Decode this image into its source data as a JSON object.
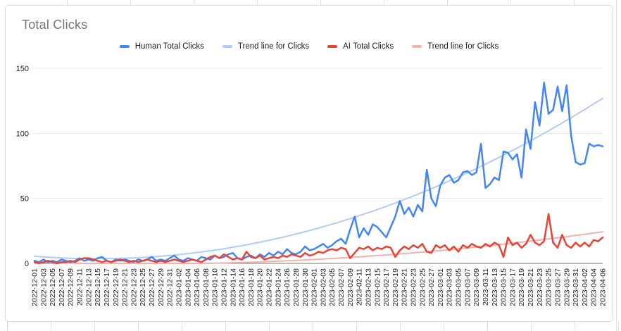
{
  "title": "Total Clicks",
  "colors": {
    "human": "#4285f4",
    "human_trend": "#aecbfa",
    "ai": "#ea4335",
    "ai_trend": "#f4b1ab",
    "grid": "#e6e6e6",
    "axis_line": "#757575",
    "axis_text": "#202124",
    "title_text": "#757575",
    "card_border": "#d8d8d8"
  },
  "legend": [
    {
      "label": "Human Total Clicks",
      "color": "#4285f4"
    },
    {
      "label": "Trend line for Clicks",
      "color": "#aecbfa"
    },
    {
      "label": "AI Total Clicks",
      "color": "#ea4335"
    },
    {
      "label": "Trend line for Clicks",
      "color": "#f4b1ab"
    }
  ],
  "chart_data": {
    "type": "line",
    "title": "Total Clicks",
    "xlabel": "",
    "ylabel": "",
    "ylim": [
      0,
      150
    ],
    "yticks": [
      0,
      50,
      100,
      150
    ],
    "grid": "horizontal",
    "legend_position": "top",
    "x_tick_every": 2,
    "x": [
      "2022-12-01",
      "2022-12-02",
      "2022-12-03",
      "2022-12-04",
      "2022-12-05",
      "2022-12-06",
      "2022-12-07",
      "2022-12-08",
      "2022-12-09",
      "2022-12-10",
      "2022-12-11",
      "2022-12-12",
      "2022-12-13",
      "2022-12-14",
      "2022-12-15",
      "2022-12-16",
      "2022-12-17",
      "2022-12-18",
      "2022-12-19",
      "2022-12-20",
      "2022-12-21",
      "2022-12-22",
      "2022-12-23",
      "2022-12-24",
      "2022-12-25",
      "2022-12-26",
      "2022-12-27",
      "2022-12-28",
      "2022-12-29",
      "2022-12-30",
      "2022-12-31",
      "2023-01-01",
      "2023-01-02",
      "2023-01-03",
      "2023-01-04",
      "2023-01-05",
      "2023-01-06",
      "2023-01-07",
      "2023-01-08",
      "2023-01-09",
      "2023-01-10",
      "2023-01-11",
      "2023-01-12",
      "2023-01-13",
      "2023-01-14",
      "2023-01-15",
      "2023-01-16",
      "2023-01-17",
      "2023-01-18",
      "2023-01-19",
      "2023-01-20",
      "2023-01-21",
      "2023-01-22",
      "2023-01-23",
      "2023-01-24",
      "2023-01-25",
      "2023-01-26",
      "2023-01-27",
      "2023-01-28",
      "2023-01-29",
      "2023-01-30",
      "2023-01-31",
      "2023-02-01",
      "2023-02-02",
      "2023-02-03",
      "2023-02-04",
      "2023-02-05",
      "2023-02-06",
      "2023-02-07",
      "2023-02-08",
      "2023-02-09",
      "2023-02-10",
      "2023-02-11",
      "2023-02-12",
      "2023-02-13",
      "2023-02-14",
      "2023-02-15",
      "2023-02-16",
      "2023-02-17",
      "2023-02-18",
      "2023-02-19",
      "2023-02-20",
      "2023-02-21",
      "2023-02-22",
      "2023-02-23",
      "2023-02-24",
      "2023-02-25",
      "2023-02-26",
      "2023-02-27",
      "2023-02-28",
      "2023-03-01",
      "2023-03-02",
      "2023-03-03",
      "2023-03-04",
      "2023-03-05",
      "2023-03-06",
      "2023-03-07",
      "2023-03-08",
      "2023-03-09",
      "2023-03-10",
      "2023-03-11",
      "2023-03-12",
      "2023-03-13",
      "2023-03-14",
      "2023-03-15",
      "2023-03-16",
      "2023-03-17",
      "2023-03-18",
      "2023-03-19",
      "2023-03-20",
      "2023-03-21",
      "2023-03-22",
      "2023-03-23",
      "2023-03-24",
      "2023-03-25",
      "2023-03-26",
      "2023-03-27",
      "2023-03-28",
      "2023-03-29",
      "2023-03-30",
      "2023-03-31",
      "2023-04-01",
      "2023-04-02",
      "2023-04-03",
      "2023-04-04",
      "2023-04-05",
      "2023-04-06"
    ],
    "series": [
      {
        "name": "Human Total Clicks",
        "color": "#4285f4",
        "values": [
          2,
          1,
          3,
          1,
          2,
          1,
          3,
          2,
          1,
          2,
          4,
          2,
          3,
          2,
          4,
          5,
          2,
          1,
          3,
          2,
          3,
          2,
          1,
          3,
          2,
          3,
          5,
          2,
          3,
          2,
          4,
          6,
          3,
          2,
          4,
          3,
          2,
          5,
          4,
          3,
          6,
          4,
          5,
          7,
          8,
          4,
          3,
          5,
          6,
          4,
          7,
          5,
          8,
          6,
          9,
          7,
          11,
          8,
          7,
          9,
          13,
          10,
          11,
          13,
          15,
          12,
          14,
          17,
          19,
          15,
          26,
          36,
          20,
          27,
          22,
          30,
          28,
          24,
          20,
          28,
          36,
          48,
          38,
          43,
          36,
          45,
          40,
          72,
          50,
          44,
          60,
          66,
          68,
          62,
          64,
          70,
          71,
          68,
          70,
          92,
          58,
          61,
          66,
          64,
          86,
          85,
          80,
          84,
          66,
          103,
          88,
          124,
          106,
          139,
          115,
          118,
          136,
          117,
          137,
          98,
          78,
          76,
          77,
          92,
          90,
          91,
          90
        ]
      },
      {
        "name": "AI Total Clicks",
        "color": "#ea4335",
        "values": [
          1,
          0,
          1,
          2,
          1,
          0,
          1,
          1,
          2,
          1,
          3,
          4,
          4,
          3,
          2,
          1,
          2,
          1,
          2,
          3,
          2,
          1,
          2,
          1,
          2,
          3,
          2,
          1,
          2,
          1,
          2,
          3,
          2,
          1,
          2,
          3,
          2,
          1,
          3,
          5,
          6,
          4,
          7,
          5,
          3,
          4,
          3,
          9,
          5,
          4,
          6,
          3,
          4,
          5,
          4,
          6,
          5,
          7,
          6,
          5,
          8,
          6,
          7,
          9,
          8,
          10,
          11,
          10,
          12,
          11,
          4,
          8,
          12,
          11,
          13,
          10,
          12,
          11,
          13,
          12,
          5,
          10,
          13,
          11,
          14,
          12,
          15,
          9,
          8,
          14,
          12,
          14,
          10,
          13,
          9,
          14,
          12,
          15,
          13,
          12,
          15,
          13,
          16,
          14,
          5,
          20,
          14,
          16,
          12,
          15,
          22,
          16,
          14,
          17,
          38,
          16,
          12,
          22,
          14,
          12,
          16,
          13,
          16,
          13,
          18,
          17,
          20
        ]
      },
      {
        "name": "Trend line for Clicks",
        "trend_of": "Human Total Clicks",
        "color": "#aecbfa",
        "poly": {
          "a": 0.00984,
          "b": -0.2755,
          "c": 5.5
        }
      },
      {
        "name": "Trend line for Clicks",
        "trend_of": "AI Total Clicks",
        "color": "#f4b1ab",
        "poly": {
          "a": 0.00239,
          "b": -0.116,
          "c": 1.0
        }
      }
    ]
  }
}
